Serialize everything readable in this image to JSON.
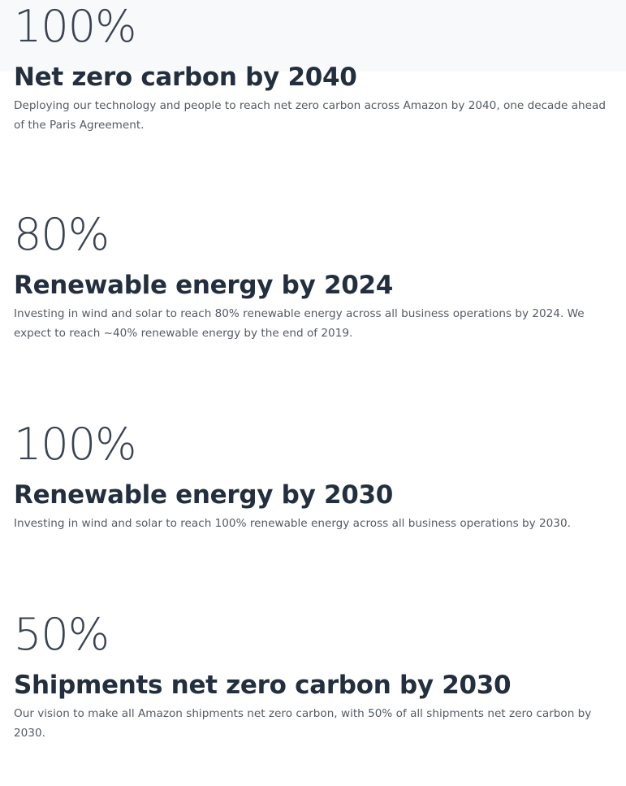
{
  "goals": [
    {
      "percent": "100%",
      "title": "Net zero carbon by 2040",
      "description": "Deploying our technology and people to reach net zero carbon across Amazon by 2040, one decade ahead of the Paris Agreement."
    },
    {
      "percent": "80%",
      "title": "Renewable energy by 2024",
      "description": "Investing in wind and solar to reach 80% renewable energy across all business operations by 2024. We expect to reach ~40% renewable energy by the end of 2019."
    },
    {
      "percent": "100%",
      "title": "Renewable energy by 2030",
      "description": "Investing in wind and solar to reach 100% renewable energy across all business operations by 2030."
    },
    {
      "percent": "50%",
      "title": "Shipments net zero carbon by 2030",
      "description": "Our vision to make all Amazon shipments net zero carbon, with 50% of all shipments net zero carbon by 2030."
    }
  ],
  "colors": {
    "heading": "#232f3e",
    "body": "#545b64",
    "top_band": "#f8f9fa"
  }
}
